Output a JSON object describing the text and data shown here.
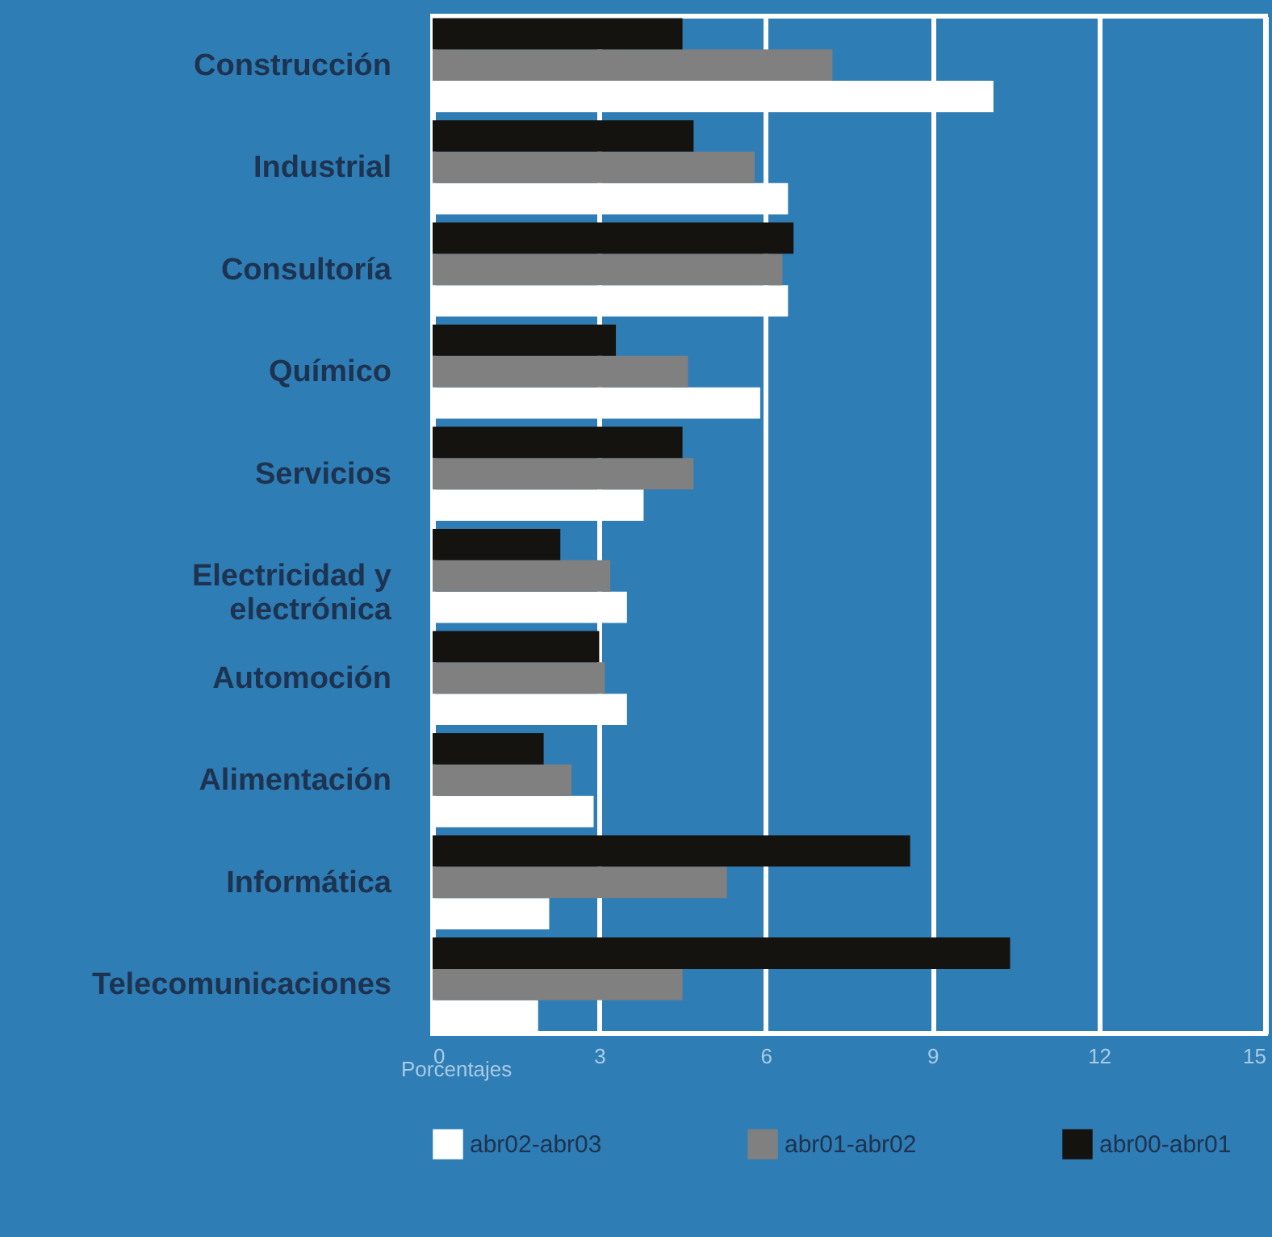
{
  "chart_data": {
    "type": "bar",
    "orientation": "horizontal",
    "xlabel": "Porcentajes",
    "categories": [
      "Construcción",
      "Industrial",
      "Consultoría",
      "Químico",
      "Servicios",
      "Electricidad y electrónica",
      "Automoción",
      "Alimentación",
      "Informática",
      "Telecomunicaciones"
    ],
    "series": [
      {
        "name": "abr02-abr03",
        "color": "#ffffff",
        "values": [
          10.1,
          6.4,
          6.4,
          5.9,
          3.8,
          3.5,
          3.5,
          2.9,
          2.1,
          1.9
        ]
      },
      {
        "name": "abr01-abr02",
        "color": "#808080",
        "values": [
          7.2,
          5.8,
          6.3,
          4.6,
          4.7,
          3.2,
          3.1,
          2.5,
          5.3,
          4.5
        ]
      },
      {
        "name": "abr00-abr01",
        "color": "#14130f",
        "values": [
          4.5,
          4.7,
          6.5,
          3.3,
          4.5,
          2.3,
          3.0,
          2.0,
          8.6,
          10.4
        ]
      }
    ],
    "xlim": [
      0,
      15
    ],
    "xticks": [
      0,
      3,
      6,
      9,
      12,
      15
    ],
    "grid": "x",
    "legend": "bottom"
  }
}
